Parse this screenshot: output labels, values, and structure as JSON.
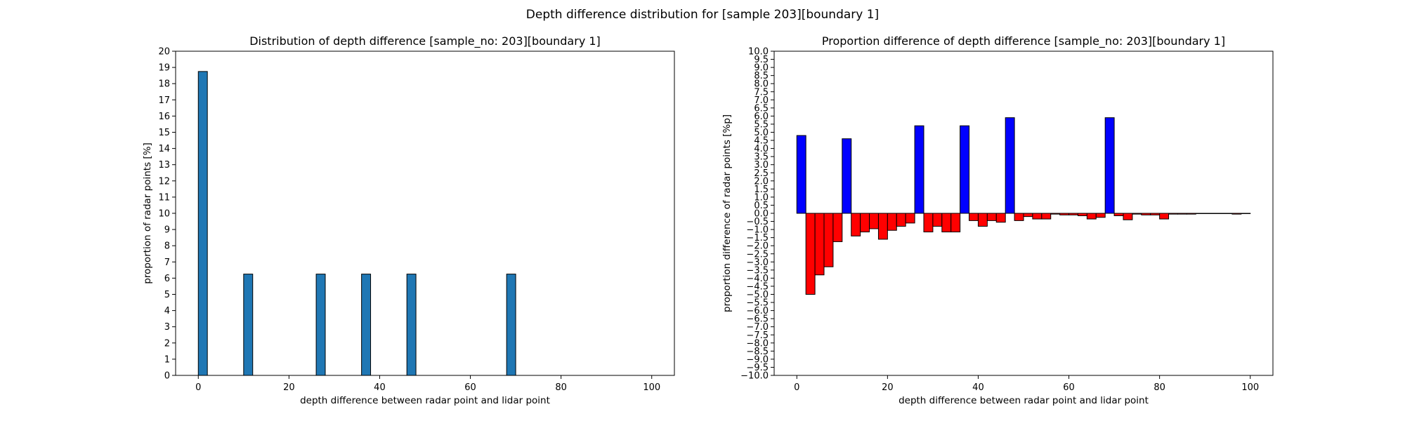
{
  "figure": {
    "suptitle": "Depth difference distribution for [sample 203][boundary 1]"
  },
  "colors": {
    "left_bar": "#1f77b4",
    "positive_bar": "#0000ff",
    "negative_bar": "#ff0000",
    "edge": "#000000"
  },
  "chart_data": [
    {
      "type": "bar",
      "title": "Distribution of depth difference [sample_no: 203][boundary 1]",
      "xlabel": "depth difference between radar point and lidar point",
      "ylabel": "proportion of radar points [%]",
      "xlim": [
        -5,
        105
      ],
      "ylim": [
        0,
        20
      ],
      "xticks": [
        0,
        20,
        40,
        60,
        80,
        100
      ],
      "yticks": [
        0,
        1,
        2,
        3,
        4,
        5,
        6,
        7,
        8,
        9,
        10,
        11,
        12,
        13,
        14,
        15,
        16,
        17,
        18,
        19,
        20
      ],
      "bin_width": 2,
      "grid": false,
      "bars": [
        {
          "x": 1,
          "value": 18.75
        },
        {
          "x": 11,
          "value": 6.25
        },
        {
          "x": 27,
          "value": 6.25
        },
        {
          "x": 37,
          "value": 6.25
        },
        {
          "x": 47,
          "value": 6.25
        },
        {
          "x": 69,
          "value": 6.25
        }
      ]
    },
    {
      "type": "bar",
      "title": "Proportion difference of depth difference [sample_no: 203][boundary 1]",
      "xlabel": "depth difference between radar point and lidar point",
      "ylabel": "proportion difference of radar points [%p]",
      "xlim": [
        -5,
        105
      ],
      "ylim": [
        -10,
        10
      ],
      "xticks": [
        0,
        20,
        40,
        60,
        80,
        100
      ],
      "yticks": [
        -10.0,
        -9.5,
        -9.0,
        -8.5,
        -8.0,
        -7.5,
        -7.0,
        -6.5,
        -6.0,
        -5.5,
        -5.0,
        -4.5,
        -4.0,
        -3.5,
        -3.0,
        -2.5,
        -2.0,
        -1.5,
        -1.0,
        -0.5,
        0.0,
        0.5,
        1.0,
        1.5,
        2.0,
        2.5,
        3.0,
        3.5,
        4.0,
        4.5,
        5.0,
        5.5,
        6.0,
        6.5,
        7.0,
        7.5,
        8.0,
        8.5,
        9.0,
        9.5,
        10.0
      ],
      "bin_width": 2,
      "grid": false,
      "bars": [
        {
          "x": 1,
          "value": 4.8
        },
        {
          "x": 3,
          "value": -5.0
        },
        {
          "x": 5,
          "value": -3.8
        },
        {
          "x": 7,
          "value": -3.3
        },
        {
          "x": 9,
          "value": -1.75
        },
        {
          "x": 11,
          "value": 4.6
        },
        {
          "x": 13,
          "value": -1.4
        },
        {
          "x": 15,
          "value": -1.15
        },
        {
          "x": 17,
          "value": -0.95
        },
        {
          "x": 19,
          "value": -1.6
        },
        {
          "x": 21,
          "value": -1.05
        },
        {
          "x": 23,
          "value": -0.8
        },
        {
          "x": 25,
          "value": -0.6
        },
        {
          "x": 27,
          "value": 5.4
        },
        {
          "x": 29,
          "value": -1.15
        },
        {
          "x": 31,
          "value": -0.8
        },
        {
          "x": 33,
          "value": -1.15
        },
        {
          "x": 35,
          "value": -1.15
        },
        {
          "x": 37,
          "value": 5.4
        },
        {
          "x": 39,
          "value": -0.45
        },
        {
          "x": 41,
          "value": -0.8
        },
        {
          "x": 43,
          "value": -0.45
        },
        {
          "x": 45,
          "value": -0.55
        },
        {
          "x": 47,
          "value": 5.9
        },
        {
          "x": 49,
          "value": -0.45
        },
        {
          "x": 51,
          "value": -0.2
        },
        {
          "x": 53,
          "value": -0.35
        },
        {
          "x": 55,
          "value": -0.35
        },
        {
          "x": 57,
          "value": -0.05
        },
        {
          "x": 59,
          "value": -0.1
        },
        {
          "x": 61,
          "value": -0.1
        },
        {
          "x": 63,
          "value": -0.15
        },
        {
          "x": 65,
          "value": -0.35
        },
        {
          "x": 67,
          "value": -0.25
        },
        {
          "x": 69,
          "value": 5.9
        },
        {
          "x": 71,
          "value": -0.15
        },
        {
          "x": 73,
          "value": -0.4
        },
        {
          "x": 75,
          "value": -0.05
        },
        {
          "x": 77,
          "value": -0.1
        },
        {
          "x": 79,
          "value": -0.1
        },
        {
          "x": 81,
          "value": -0.35
        },
        {
          "x": 83,
          "value": -0.05
        },
        {
          "x": 85,
          "value": -0.05
        },
        {
          "x": 87,
          "value": -0.05
        },
        {
          "x": 89,
          "value": -0.02
        },
        {
          "x": 91,
          "value": -0.02
        },
        {
          "x": 93,
          "value": -0.02
        },
        {
          "x": 95,
          "value": -0.02
        },
        {
          "x": 97,
          "value": -0.05
        },
        {
          "x": 99,
          "value": -0.02
        }
      ]
    }
  ]
}
